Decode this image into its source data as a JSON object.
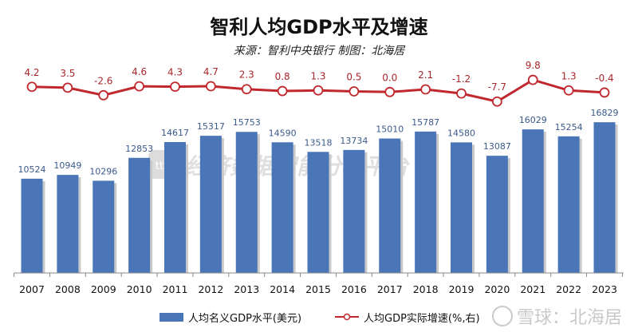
{
  "chart_data": {
    "type": "bar+line",
    "title": "智利人均GDP水平及增速",
    "subtitle": "来源：智利中央银行  制图：北海居",
    "categories": [
      "2007",
      "2008",
      "2009",
      "2010",
      "2011",
      "2012",
      "2013",
      "2014",
      "2015",
      "2016",
      "2017",
      "2018",
      "2019",
      "2020",
      "2021",
      "2022",
      "2023"
    ],
    "series": [
      {
        "name": "人均名义GDP水平(美元)",
        "type": "bar",
        "axis": "left",
        "color": "#4a76b8",
        "values": [
          10524,
          10949,
          10296,
          12853,
          14617,
          15317,
          15753,
          14590,
          13518,
          13734,
          15010,
          15787,
          14580,
          13087,
          16029,
          15254,
          16829
        ]
      },
      {
        "name": "人均GDP实际增速(%,右)",
        "type": "line",
        "axis": "right",
        "color": "#c0282e",
        "values": [
          4.2,
          3.5,
          -2.6,
          4.6,
          4.3,
          4.7,
          2.3,
          0.8,
          1.3,
          0.5,
          0.0,
          2.1,
          -1.2,
          -7.7,
          9.8,
          1.3,
          -0.4
        ]
      }
    ],
    "ylim": [
      0,
      18000
    ],
    "y2lim": [
      -146,
      15
    ],
    "grid": false,
    "legend": "bottom",
    "line_labels": [
      "4.2",
      "3.5",
      "-2.6",
      "4.6",
      "4.3",
      "4.7",
      "2.3",
      "0.8",
      "1.3",
      "0.5",
      "0.0",
      "2.1",
      "-1.2",
      "-7.7",
      "9.8",
      "1.3",
      "-0.4"
    ]
  },
  "watermarks": {
    "center": "经济数据智能分析平台",
    "center_logo": "ttp",
    "corner": "雪球：北海居"
  }
}
